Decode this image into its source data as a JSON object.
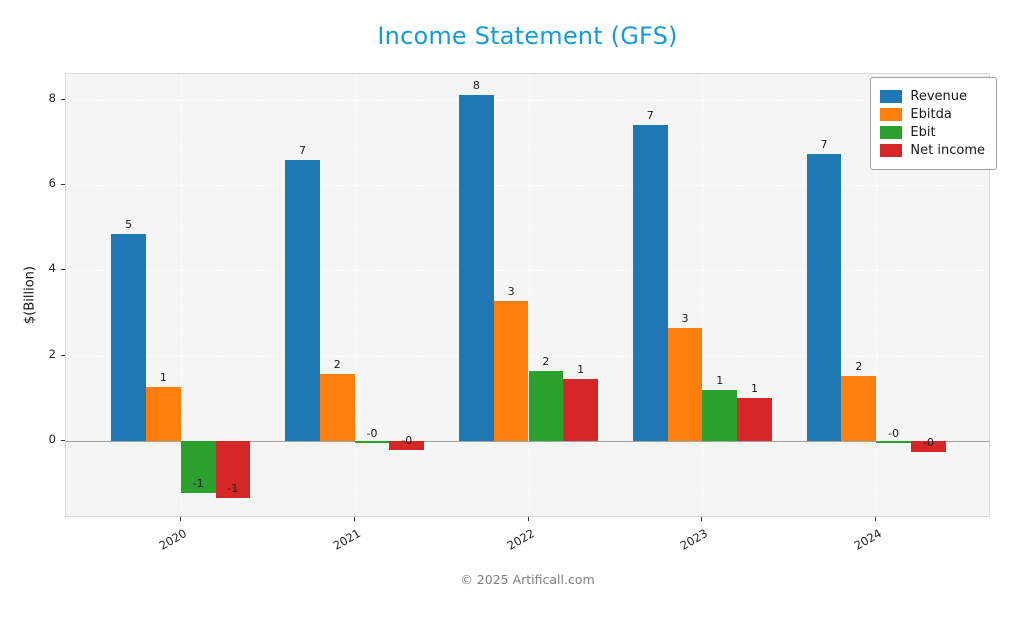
{
  "chart_data": {
    "type": "bar",
    "title": "Income Statement (GFS)",
    "title_color": "#189ad3",
    "ylabel": "$(Billion)",
    "categories": [
      "2020",
      "2021",
      "2022",
      "2023",
      "2024"
    ],
    "series": [
      {
        "name": "Revenue",
        "color": "#1f77b4",
        "values": [
          4.85,
          6.58,
          8.1,
          7.4,
          6.73
        ],
        "bar_labels": [
          "5",
          "7",
          "8",
          "7",
          "7"
        ]
      },
      {
        "name": "Ebitda",
        "color": "#ff7f0e",
        "values": [
          1.28,
          1.57,
          3.28,
          2.64,
          1.52
        ],
        "bar_labels": [
          "1",
          "2",
          "3",
          "3",
          "2"
        ]
      },
      {
        "name": "Ebit",
        "color": "#2ca02c",
        "values": [
          -1.21,
          -0.05,
          1.64,
          1.19,
          -0.05
        ],
        "bar_labels": [
          "-1",
          "-0",
          "2",
          "1",
          "-0"
        ]
      },
      {
        "name": "Net income",
        "color": "#d62728",
        "values": [
          -1.33,
          -0.2,
          1.45,
          1.01,
          -0.25
        ],
        "bar_labels": [
          "-1",
          "-0",
          "1",
          "1",
          "-0"
        ]
      }
    ],
    "ylim": [
      -1.8,
      8.6
    ],
    "yticks": [
      0,
      2,
      4,
      6,
      8
    ],
    "grid": true,
    "legend_position": "upper right",
    "plot_bg": "#f5f5f5",
    "grid_color": "#ffffff"
  },
  "footer": {
    "text": "© 2025 Artificall.com"
  }
}
